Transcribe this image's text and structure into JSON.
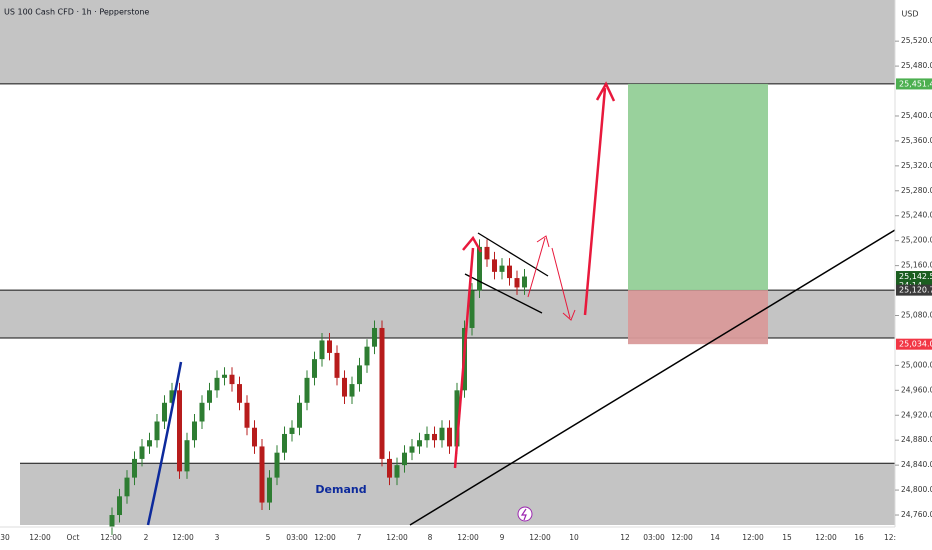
{
  "chart_data": {
    "type": "candlestick",
    "title": "US 100 Cash CFD · 1h · Pepperstone",
    "currency": "USD",
    "annotation": "Demand",
    "up_color": "#2e7d32",
    "down_color": "#b71c1c",
    "ylim": [
      24744,
      25586
    ],
    "yticks": [
      {
        "value": 25520,
        "label": "25,520.0"
      },
      {
        "value": 25480,
        "label": "25,480.0"
      },
      {
        "value": 25400,
        "label": "25,400.0"
      },
      {
        "value": 25360,
        "label": "25,360.0"
      },
      {
        "value": 25320,
        "label": "25,320.0"
      },
      {
        "value": 25280,
        "label": "25,280.0"
      },
      {
        "value": 25240,
        "label": "25,240.0"
      },
      {
        "value": 25200,
        "label": "25,200.0"
      },
      {
        "value": 25160,
        "label": "25,160.0"
      },
      {
        "value": 25080,
        "label": "25,080.0"
      },
      {
        "value": 25000,
        "label": "25,000.0"
      },
      {
        "value": 24960,
        "label": "24,960.0"
      },
      {
        "value": 24920,
        "label": "24,920.0"
      },
      {
        "value": 24880,
        "label": "24,880.0"
      },
      {
        "value": 24840,
        "label": "24,840.0"
      },
      {
        "value": 24800,
        "label": "24,800.0"
      },
      {
        "value": 24760,
        "label": "24,760.0"
      }
    ],
    "xtick_labels": [
      "30",
      "12:00",
      "Oct",
      "12:00",
      "2",
      "12:00",
      "3",
      "5",
      "03:00",
      "12:00",
      "7",
      "12:00",
      "8",
      "12:00",
      "9",
      "12:00",
      "10",
      "12",
      "03:00",
      "12:00",
      "14",
      "12:00",
      "15",
      "12:00",
      "16",
      "12:"
    ],
    "open": [
      24740,
      24760,
      24790,
      24820,
      24850,
      24870,
      24880,
      24910,
      24940,
      24960,
      24830,
      24880,
      24910,
      24940,
      24960,
      24980,
      24985,
      24970,
      24940,
      24900,
      24870,
      24780,
      24820,
      24860,
      24890,
      24900,
      24940,
      24980,
      25010,
      25040,
      25020,
      24980,
      24950,
      24970,
      25000,
      25030,
      25060,
      24850,
      24820,
      24840,
      24860,
      24870,
      24880,
      24890,
      24880,
      24900,
      24870,
      24960,
      25060,
      25120,
      25190,
      25170,
      25150,
      25160,
      25140,
      25125
    ],
    "high": [
      24772,
      24802,
      24832,
      24862,
      24882,
      24892,
      24922,
      24952,
      24972,
      24972,
      24892,
      24922,
      24952,
      24972,
      24992,
      24997,
      24997,
      24982,
      24952,
      24912,
      24882,
      24832,
      24872,
      24902,
      24912,
      24952,
      24992,
      25022,
      25052,
      25052,
      25032,
      24992,
      24982,
      25012,
      25042,
      25072,
      25072,
      24862,
      24852,
      24872,
      24882,
      24892,
      24902,
      24902,
      24912,
      24912,
      24972,
      25072,
      25132,
      25202,
      25202,
      25182,
      25172,
      25172,
      25152,
      25154.5
    ],
    "low": [
      24728,
      24748,
      24778,
      24808,
      24838,
      24858,
      24868,
      24898,
      24928,
      24818,
      24818,
      24868,
      24898,
      24928,
      24948,
      24968,
      24958,
      24928,
      24888,
      24858,
      24768,
      24768,
      24808,
      24848,
      24878,
      24888,
      24928,
      24968,
      24998,
      25008,
      24968,
      24938,
      24938,
      24958,
      24988,
      25018,
      24838,
      24808,
      24808,
      24828,
      24848,
      24858,
      24868,
      24868,
      24868,
      24858,
      24858,
      24948,
      25048,
      25108,
      25158,
      25138,
      25138,
      25128,
      25113,
      25113
    ],
    "close": [
      24760,
      24790,
      24820,
      24850,
      24870,
      24880,
      24910,
      24940,
      24960,
      24830,
      24880,
      24910,
      24940,
      24960,
      24980,
      24985,
      24970,
      24940,
      24900,
      24870,
      24780,
      24820,
      24860,
      24890,
      24900,
      24940,
      24980,
      25010,
      25040,
      25020,
      24980,
      24950,
      24970,
      25000,
      25030,
      25060,
      24850,
      24820,
      24840,
      24860,
      24870,
      24880,
      24890,
      24880,
      24900,
      24870,
      24960,
      25060,
      25120,
      25190,
      25170,
      25150,
      25160,
      25140,
      25125,
      25142.5
    ],
    "zones": [
      {
        "from": 25451.4,
        "to": 25586,
        "color": "#c4c4c4"
      },
      {
        "from": 25044,
        "to": 25120.7,
        "color": "#c4c4c4"
      },
      {
        "from": 24744,
        "to": 24843,
        "color": "#c4c4c4"
      }
    ],
    "levels": [
      25451.4,
      25120.7,
      25044,
      24843
    ],
    "target": {
      "from": 25120.7,
      "to": 25451.4,
      "color": "#93cf97"
    },
    "stop": {
      "from": 25034,
      "to": 25120.7,
      "color": "#d99a9a"
    },
    "price_tags": [
      {
        "value": 25451.4,
        "label": "25,451.4",
        "color": "#4caf50"
      },
      {
        "value": 25142.5,
        "label": "25,142.5",
        "color": "#1b5e20",
        "countdown": "24:14"
      },
      {
        "value": 25120.7,
        "label": "25,120.7",
        "color": "#3a3a3a"
      },
      {
        "value": 25034,
        "label": "25,034.0",
        "color": "#f23645"
      }
    ]
  }
}
